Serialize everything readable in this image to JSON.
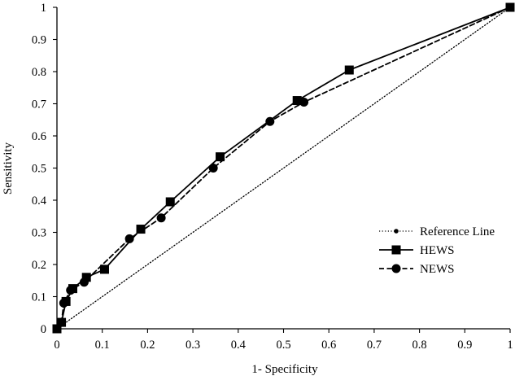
{
  "chart_data": {
    "type": "line",
    "xlabel": "1- Specificity",
    "ylabel": "Sensitivity",
    "xlim": [
      0,
      1
    ],
    "ylim": [
      0,
      1
    ],
    "x_ticks": [
      0,
      0.1,
      0.2,
      0.3,
      0.4,
      0.5,
      0.6,
      0.7,
      0.8,
      0.9,
      1
    ],
    "y_ticks": [
      0,
      0.1,
      0.2,
      0.3,
      0.4,
      0.5,
      0.6,
      0.7,
      0.8,
      0.9,
      1
    ],
    "x_tick_labels": [
      "0",
      "0.1",
      "0.2",
      "0.3",
      "0.4",
      "0.5",
      "0.6",
      "0.7",
      "0.8",
      "0.9",
      "1"
    ],
    "y_tick_labels": [
      "0",
      "0.1",
      "0.2",
      "0.3",
      "0.4",
      "0.5",
      "0.6",
      "0.7",
      "0.8",
      "0.9",
      "1"
    ],
    "grid": false,
    "legend_position": "right",
    "series": [
      {
        "name": "Reference Line",
        "line_style": "dotted",
        "marker": "small-circle",
        "color": "#000000",
        "points": [
          [
            0,
            0
          ],
          [
            1,
            1
          ]
        ]
      },
      {
        "name": "HEWS",
        "line_style": "solid",
        "marker": "square",
        "color": "#000000",
        "points": [
          [
            0,
            0
          ],
          [
            0.01,
            0.02
          ],
          [
            0.02,
            0.085
          ],
          [
            0.035,
            0.125
          ],
          [
            0.065,
            0.16
          ],
          [
            0.105,
            0.185
          ],
          [
            0.185,
            0.31
          ],
          [
            0.25,
            0.395
          ],
          [
            0.36,
            0.535
          ],
          [
            0.53,
            0.71
          ],
          [
            0.645,
            0.805
          ],
          [
            1,
            1
          ]
        ]
      },
      {
        "name": "NEWS",
        "line_style": "dashed",
        "marker": "circle",
        "color": "#000000",
        "points": [
          [
            0,
            0
          ],
          [
            0.01,
            0.02
          ],
          [
            0.015,
            0.08
          ],
          [
            0.03,
            0.12
          ],
          [
            0.06,
            0.145
          ],
          [
            0.16,
            0.28
          ],
          [
            0.23,
            0.345
          ],
          [
            0.345,
            0.5
          ],
          [
            0.47,
            0.645
          ],
          [
            0.545,
            0.705
          ],
          [
            1,
            1
          ]
        ]
      }
    ]
  }
}
